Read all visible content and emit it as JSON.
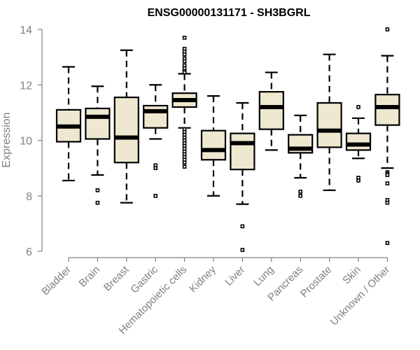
{
  "chart_data": {
    "type": "boxplot",
    "title": "ENSG00000131171 - SH3BGRL",
    "xlabel": "",
    "ylabel": "Expression",
    "ylim": [
      6,
      14
    ],
    "yticks": [
      6,
      8,
      10,
      12,
      14
    ],
    "ytick_labels": [
      "6",
      "8",
      "10",
      "12",
      "14"
    ],
    "grid": false,
    "legend": "none",
    "box_fill": "#EEE8D0",
    "box_stroke": "#000000",
    "categories": [
      "Bladder",
      "Brain",
      "Breast",
      "Gastric",
      "Hematopoietic cells",
      "Kidney",
      "Liver",
      "Lung",
      "Pancreas",
      "Prostate",
      "Skin",
      "Unknown / Other"
    ],
    "boxes": [
      {
        "name": "Bladder",
        "whisker_low": 8.55,
        "q1": 9.95,
        "median": 10.5,
        "q3": 11.1,
        "whisker_high": 12.65,
        "outliers": []
      },
      {
        "name": "Brain",
        "whisker_low": 8.75,
        "q1": 10.05,
        "median": 10.85,
        "q3": 11.15,
        "whisker_high": 11.95,
        "outliers": [
          8.2,
          7.75
        ]
      },
      {
        "name": "Breast",
        "whisker_low": 7.75,
        "q1": 9.2,
        "median": 10.1,
        "q3": 11.55,
        "whisker_high": 13.25,
        "outliers": []
      },
      {
        "name": "Gastric",
        "whisker_low": 10.05,
        "q1": 10.45,
        "median": 11.05,
        "q3": 11.25,
        "whisker_high": 12.0,
        "outliers": [
          9.1,
          9.0,
          8.0
        ]
      },
      {
        "name": "Hematopoietic cells",
        "whisker_low": 10.45,
        "q1": 11.2,
        "median": 11.45,
        "q3": 11.7,
        "whisker_high": 12.4,
        "outliers": [
          13.7,
          13.3,
          13.2,
          13.1,
          12.95,
          12.85,
          12.7,
          12.6,
          12.5,
          12.45,
          10.4,
          10.3,
          10.2,
          10.1,
          10.0,
          9.9,
          9.8,
          9.7,
          9.6,
          9.5,
          9.4,
          9.3,
          9.2,
          9.05
        ]
      },
      {
        "name": "Kidney",
        "whisker_low": 8.0,
        "q1": 9.3,
        "median": 9.65,
        "q3": 10.35,
        "whisker_high": 11.6,
        "outliers": []
      },
      {
        "name": "Liver",
        "whisker_low": 7.7,
        "q1": 8.95,
        "median": 9.9,
        "q3": 10.25,
        "whisker_high": 11.35,
        "outliers": [
          6.9,
          6.05
        ]
      },
      {
        "name": "Lung",
        "whisker_low": 9.65,
        "q1": 10.4,
        "median": 11.2,
        "q3": 11.75,
        "whisker_high": 12.45,
        "outliers": []
      },
      {
        "name": "Pancreas",
        "whisker_low": 8.65,
        "q1": 9.55,
        "median": 9.7,
        "q3": 10.2,
        "whisker_high": 10.9,
        "outliers": [
          8.15,
          8.0
        ]
      },
      {
        "name": "Prostate",
        "whisker_low": 8.2,
        "q1": 9.75,
        "median": 10.35,
        "q3": 11.35,
        "whisker_high": 13.1,
        "outliers": []
      },
      {
        "name": "Skin",
        "whisker_low": 9.35,
        "q1": 9.65,
        "median": 9.85,
        "q3": 10.25,
        "whisker_high": 10.8,
        "outliers": [
          11.2,
          8.65,
          8.55
        ]
      },
      {
        "name": "Unknown / Other",
        "whisker_low": 9.0,
        "q1": 10.55,
        "median": 11.2,
        "q3": 11.65,
        "whisker_high": 13.05,
        "outliers": [
          14.0,
          8.85,
          8.8,
          8.75,
          8.45,
          7.85,
          7.75,
          6.3
        ]
      }
    ]
  }
}
